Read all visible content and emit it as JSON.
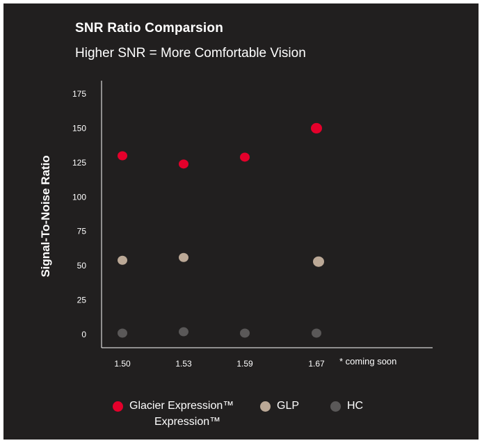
{
  "chart_data": {
    "type": "scatter",
    "title": "SNR Ratio Comparsion",
    "subtitle": "Higher SNR = More Comfortable Vision",
    "xlabel": "",
    "ylabel": "Signal-To-Noise Ratio",
    "categories": [
      "1.50",
      "1.53",
      "1.59",
      "1.67"
    ],
    "x_note": "* coming soon",
    "ylim": [
      0,
      175
    ],
    "yticks": [
      0,
      25,
      50,
      75,
      100,
      125,
      150,
      175
    ],
    "grid": false,
    "legend_position": "bottom",
    "legend_note": "Expression™",
    "series": [
      {
        "name": "Glacier Expression™",
        "color": "#e4002b",
        "values": [
          130,
          124,
          129,
          150
        ]
      },
      {
        "name": "GLP",
        "color": "#bba896",
        "values": [
          54,
          56,
          0,
          53
        ]
      },
      {
        "name": "HC",
        "color": "#5a5858",
        "values": [
          1,
          2,
          1,
          1
        ]
      }
    ],
    "missing": [
      [
        false,
        false,
        false,
        false
      ],
      [
        false,
        false,
        true,
        false
      ],
      [
        false,
        false,
        false,
        false
      ]
    ]
  }
}
